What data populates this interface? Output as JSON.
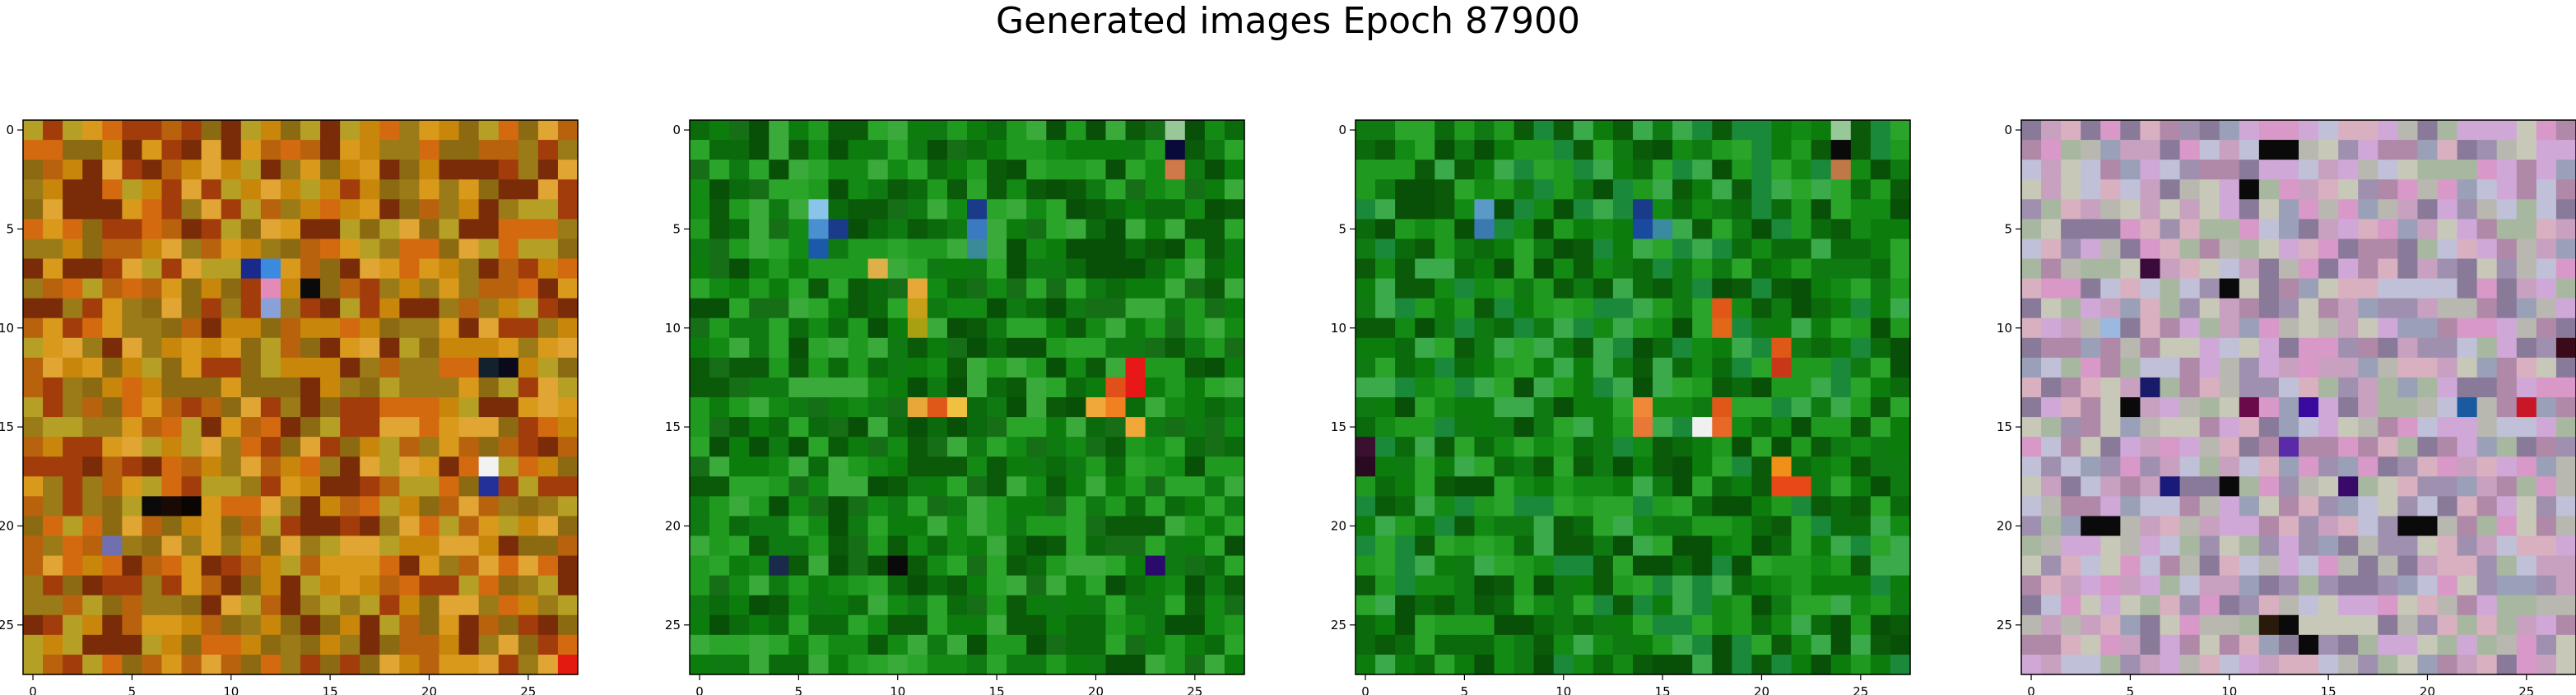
{
  "figure": {
    "title": "Generated images Epoch 87900"
  },
  "chart_data": [
    {
      "type": "heatmap",
      "title": "",
      "xlabel": "",
      "ylabel": "",
      "xlim": [
        -0.5,
        27.5
      ],
      "ylim": [
        27.5,
        -0.5
      ],
      "xticks": [
        0,
        5,
        10,
        15,
        20,
        25
      ],
      "yticks": [
        0,
        5,
        10,
        15,
        20,
        25
      ],
      "grid_size": [
        28,
        28
      ],
      "palette": [
        "#c8860a",
        "#b8620e",
        "#a33c0b",
        "#d99a1c",
        "#8c6a12",
        "#e0a533",
        "#7a2b08",
        "#b5a025",
        "#d46a10",
        "#9b7a18"
      ],
      "accents": [
        {
          "x": 11,
          "y": 7,
          "color": "#1a2a8c"
        },
        {
          "x": 12,
          "y": 7,
          "color": "#3a8ae0"
        },
        {
          "x": 12,
          "y": 8,
          "color": "#e38ab8"
        },
        {
          "x": 12,
          "y": 9,
          "color": "#8aa0d8"
        },
        {
          "x": 14,
          "y": 8,
          "color": "#0a0a0a"
        },
        {
          "x": 23,
          "y": 17,
          "color": "#f2f2f2"
        },
        {
          "x": 23,
          "y": 18,
          "color": "#23309a"
        },
        {
          "x": 24,
          "y": 12,
          "color": "#0a0a1a"
        },
        {
          "x": 23,
          "y": 12,
          "color": "#14202c"
        },
        {
          "x": 6,
          "y": 19,
          "color": "#0a0a0a"
        },
        {
          "x": 7,
          "y": 19,
          "color": "#1a0a05"
        },
        {
          "x": 8,
          "y": 19,
          "color": "#0a0500"
        },
        {
          "x": 4,
          "y": 21,
          "color": "#7070b0"
        },
        {
          "x": 27,
          "y": 27,
          "color": "#e31a10"
        }
      ]
    },
    {
      "type": "heatmap",
      "title": "",
      "xlabel": "",
      "ylabel": "",
      "xlim": [
        -0.5,
        27.5
      ],
      "ylim": [
        27.5,
        -0.5
      ],
      "xticks": [
        0,
        5,
        10,
        15,
        20,
        25
      ],
      "yticks": [
        0,
        5,
        10,
        15,
        20,
        25
      ],
      "grid_size": [
        28,
        28
      ],
      "palette": [
        "#0b6a0b",
        "#138a13",
        "#0a5a0a",
        "#1f9a1f",
        "#0f7a12",
        "#085008",
        "#2aa52a",
        "#166e16",
        "#0c7d0c",
        "#3aaa3a"
      ],
      "accents": [
        {
          "x": 6,
          "y": 4,
          "color": "#8ac4e8"
        },
        {
          "x": 6,
          "y": 5,
          "color": "#4a90d0"
        },
        {
          "x": 6,
          "y": 6,
          "color": "#1a5aa8"
        },
        {
          "x": 7,
          "y": 5,
          "color": "#1a3a8a"
        },
        {
          "x": 14,
          "y": 4,
          "color": "#1a3a8a"
        },
        {
          "x": 14,
          "y": 5,
          "color": "#3a7ac0"
        },
        {
          "x": 14,
          "y": 6,
          "color": "#3a8a9a"
        },
        {
          "x": 9,
          "y": 7,
          "color": "#e0b048"
        },
        {
          "x": 11,
          "y": 8,
          "color": "#e8a838"
        },
        {
          "x": 11,
          "y": 9,
          "color": "#c8a018"
        },
        {
          "x": 11,
          "y": 10,
          "color": "#a8a010"
        },
        {
          "x": 11,
          "y": 14,
          "color": "#e8a838"
        },
        {
          "x": 12,
          "y": 14,
          "color": "#e05818"
        },
        {
          "x": 13,
          "y": 14,
          "color": "#f0c040"
        },
        {
          "x": 21,
          "y": 13,
          "color": "#e05018"
        },
        {
          "x": 22,
          "y": 12,
          "color": "#e81818"
        },
        {
          "x": 22,
          "y": 13,
          "color": "#e81818"
        },
        {
          "x": 21,
          "y": 14,
          "color": "#f08020"
        },
        {
          "x": 22,
          "y": 15,
          "color": "#f0a838"
        },
        {
          "x": 20,
          "y": 14,
          "color": "#f0a838"
        },
        {
          "x": 24,
          "y": 1,
          "color": "#0a0a3a"
        },
        {
          "x": 24,
          "y": 2,
          "color": "#d07848"
        },
        {
          "x": 24,
          "y": 0,
          "color": "#98c898"
        },
        {
          "x": 10,
          "y": 22,
          "color": "#0a0a0a"
        },
        {
          "x": 23,
          "y": 22,
          "color": "#2a0a6a"
        },
        {
          "x": 4,
          "y": 22,
          "color": "#1a2a4a"
        }
      ]
    },
    {
      "type": "heatmap",
      "title": "",
      "xlabel": "",
      "ylabel": "",
      "xlim": [
        -0.5,
        27.5
      ],
      "ylim": [
        27.5,
        -0.5
      ],
      "xticks": [
        0,
        5,
        10,
        15,
        20,
        25
      ],
      "yticks": [
        0,
        5,
        10,
        15,
        20,
        25
      ],
      "grid_size": [
        28,
        28
      ],
      "palette": [
        "#0b6a0b",
        "#138a13",
        "#0a5a0a",
        "#1f9a1f",
        "#0f7a12",
        "#085008",
        "#2aa52a",
        "#1a8a3a",
        "#0c7d0c",
        "#3aaa4a"
      ],
      "accents": [
        {
          "x": 6,
          "y": 4,
          "color": "#5a9ac8"
        },
        {
          "x": 6,
          "y": 5,
          "color": "#3a7ab0"
        },
        {
          "x": 14,
          "y": 4,
          "color": "#1a3a8a"
        },
        {
          "x": 14,
          "y": 5,
          "color": "#1a4aa0"
        },
        {
          "x": 15,
          "y": 5,
          "color": "#3a8aa0"
        },
        {
          "x": 24,
          "y": 1,
          "color": "#0a0a0a"
        },
        {
          "x": 24,
          "y": 2,
          "color": "#c07848"
        },
        {
          "x": 24,
          "y": 0,
          "color": "#98c898"
        },
        {
          "x": 18,
          "y": 9,
          "color": "#e05818"
        },
        {
          "x": 18,
          "y": 10,
          "color": "#e06818"
        },
        {
          "x": 21,
          "y": 11,
          "color": "#e05818"
        },
        {
          "x": 21,
          "y": 12,
          "color": "#c83818"
        },
        {
          "x": 14,
          "y": 14,
          "color": "#f08838"
        },
        {
          "x": 14,
          "y": 15,
          "color": "#e87838"
        },
        {
          "x": 17,
          "y": 15,
          "color": "#f0f0f0"
        },
        {
          "x": 18,
          "y": 14,
          "color": "#e05818"
        },
        {
          "x": 18,
          "y": 15,
          "color": "#e86828"
        },
        {
          "x": 21,
          "y": 17,
          "color": "#f09018"
        },
        {
          "x": 21,
          "y": 18,
          "color": "#e84818"
        },
        {
          "x": 22,
          "y": 18,
          "color": "#e84818"
        },
        {
          "x": 0,
          "y": 16,
          "color": "#3a1030"
        },
        {
          "x": 0,
          "y": 17,
          "color": "#2a0a20"
        }
      ]
    },
    {
      "type": "heatmap",
      "title": "",
      "xlabel": "",
      "ylabel": "",
      "xlim": [
        -0.5,
        27.5
      ],
      "ylim": [
        27.5,
        -0.5
      ],
      "xticks": [
        0,
        5,
        10,
        15,
        20,
        25
      ],
      "yticks": [
        0,
        5,
        10,
        15,
        20,
        25
      ],
      "grid_size": [
        28,
        28
      ],
      "palette": [
        "#c8a0c0",
        "#b8b8b0",
        "#d898c8",
        "#a090b0",
        "#c8c8b8",
        "#b088a8",
        "#9aa0b8",
        "#d8b0c0",
        "#a8b8a0",
        "#c0c0d8",
        "#8a7a9a",
        "#d0a8d8"
      ],
      "accents": [
        {
          "x": 13,
          "y": 1,
          "color": "#0a0a0a"
        },
        {
          "x": 12,
          "y": 1,
          "color": "#0a0a0a"
        },
        {
          "x": 11,
          "y": 3,
          "color": "#0a0a0a"
        },
        {
          "x": 6,
          "y": 7,
          "color": "#3a0a3a"
        },
        {
          "x": 10,
          "y": 8,
          "color": "#0a0a0a"
        },
        {
          "x": 4,
          "y": 10,
          "color": "#9ab8e0"
        },
        {
          "x": 6,
          "y": 13,
          "color": "#1a1a6a"
        },
        {
          "x": 5,
          "y": 14,
          "color": "#0a0a0a"
        },
        {
          "x": 11,
          "y": 14,
          "color": "#6a0a4a"
        },
        {
          "x": 14,
          "y": 14,
          "color": "#3a0aa0"
        },
        {
          "x": 22,
          "y": 14,
          "color": "#1a5aa0"
        },
        {
          "x": 25,
          "y": 14,
          "color": "#c81828"
        },
        {
          "x": 27,
          "y": 11,
          "color": "#3a0a1a"
        },
        {
          "x": 7,
          "y": 18,
          "color": "#1a1a7a"
        },
        {
          "x": 10,
          "y": 18,
          "color": "#0a0a0a"
        },
        {
          "x": 3,
          "y": 20,
          "color": "#0a0a0a"
        },
        {
          "x": 4,
          "y": 20,
          "color": "#0a0a0a"
        },
        {
          "x": 19,
          "y": 20,
          "color": "#0a0a0a"
        },
        {
          "x": 20,
          "y": 20,
          "color": "#0a0a0a"
        },
        {
          "x": 13,
          "y": 25,
          "color": "#0a0a0a"
        },
        {
          "x": 12,
          "y": 25,
          "color": "#2a1a0a"
        },
        {
          "x": 14,
          "y": 26,
          "color": "#0a0a0a"
        },
        {
          "x": 13,
          "y": 16,
          "color": "#5a2aa8"
        },
        {
          "x": 16,
          "y": 18,
          "color": "#3a0a6a"
        }
      ]
    }
  ]
}
